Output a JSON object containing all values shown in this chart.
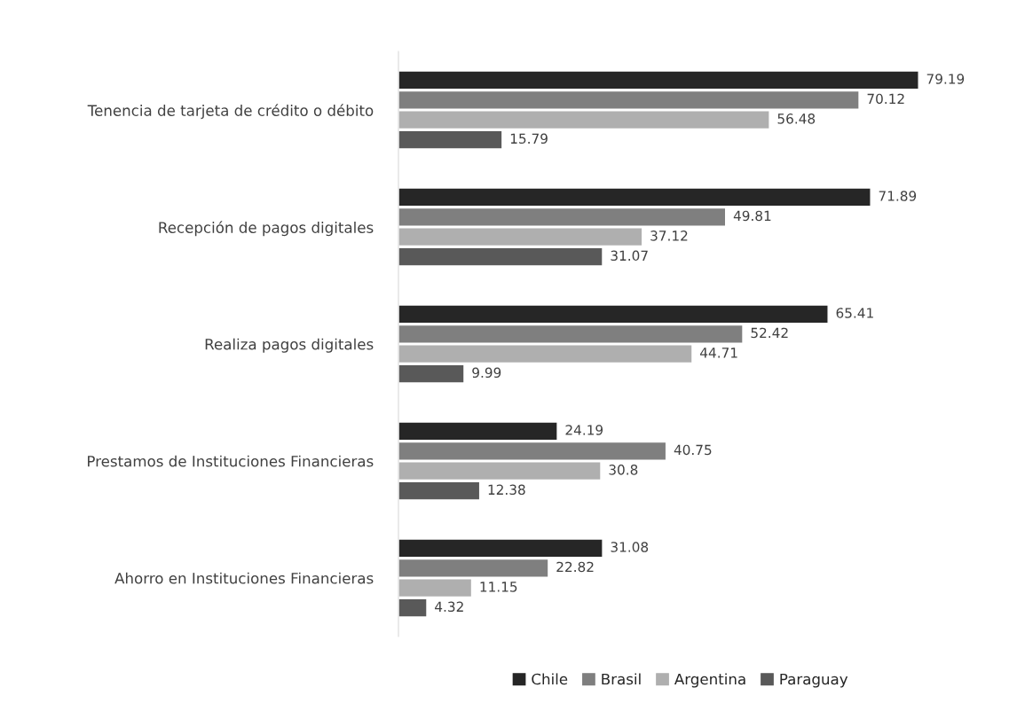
{
  "chart_data": {
    "type": "bar",
    "orientation": "horizontal",
    "categories": [
      "Tenencia de tarjeta de crédito o débito",
      "Recepción de pagos digitales",
      "Realiza pagos digitales",
      "Prestamos de Instituciones Financieras",
      "Ahorro en Instituciones Financieras"
    ],
    "series": [
      {
        "name": "Chile",
        "color": "#262626",
        "values": [
          79.19,
          71.89,
          65.41,
          24.19,
          31.08
        ]
      },
      {
        "name": "Brasil",
        "color": "#7f7f7f",
        "values": [
          70.12,
          49.81,
          52.42,
          40.75,
          22.82
        ]
      },
      {
        "name": "Argentina",
        "color": "#afafaf",
        "values": [
          56.48,
          37.12,
          44.71,
          30.8,
          11.15
        ]
      },
      {
        "name": "Paraguay",
        "color": "#595959",
        "values": [
          15.79,
          31.07,
          9.99,
          12.38,
          4.32
        ]
      }
    ],
    "data_labels": true,
    "legend": "bottom",
    "grid": false
  }
}
